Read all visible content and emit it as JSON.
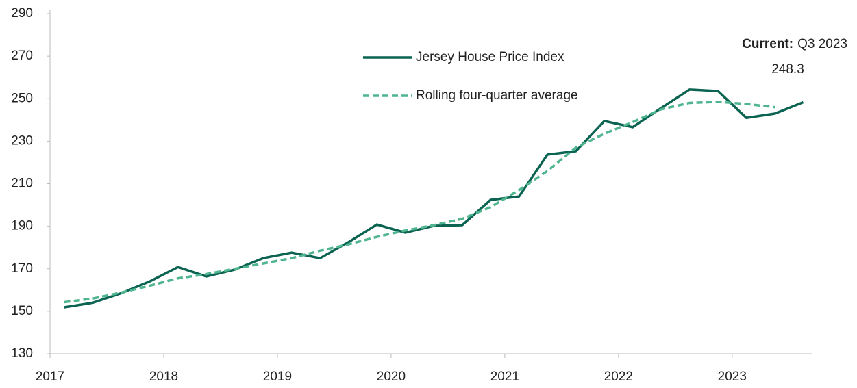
{
  "chart_data": {
    "type": "line",
    "x": [
      2017.125,
      2017.375,
      2017.625,
      2017.875,
      2018.125,
      2018.375,
      2018.625,
      2018.875,
      2019.125,
      2019.375,
      2019.625,
      2019.875,
      2020.125,
      2020.375,
      2020.625,
      2020.875,
      2021.125,
      2021.375,
      2021.625,
      2021.875,
      2022.125,
      2022.375,
      2022.625,
      2022.875,
      2023.125,
      2023.375,
      2023.625
    ],
    "series": [
      {
        "name": "Jersey House Price Index",
        "color": "#0b6352",
        "dashed": false,
        "values": [
          151.9,
          154,
          158.5,
          164,
          170.8,
          166.4,
          169.6,
          175,
          177.6,
          175,
          182.5,
          190.8,
          187,
          190.2,
          190.5,
          202.4,
          204,
          223.7,
          225.3,
          239.5,
          236.6,
          245.6,
          254.3,
          253.6,
          241,
          243,
          248.3
        ]
      },
      {
        "name": "Rolling four-quarter average",
        "color": "#4fb58f",
        "dashed": true,
        "values": [
          154.3,
          156,
          158.8,
          162,
          165.5,
          167.5,
          170,
          172.5,
          175,
          178.5,
          181.5,
          185,
          188,
          190.5,
          193.5,
          199,
          207,
          216,
          227,
          233.5,
          239,
          245,
          248,
          248.5,
          247.5,
          246,
          null
        ]
      }
    ],
    "annotation": {
      "label": "Current:",
      "period": "Q3 2023"
    },
    "xlim": [
      2017,
      2023.7
    ],
    "xticks": [
      2017,
      2018,
      2019,
      2020,
      2021,
      2022,
      2023
    ],
    "ylim": [
      130,
      290
    ],
    "yticks": [
      130,
      150,
      170,
      190,
      210,
      230,
      250,
      270,
      290
    ],
    "grid": false
  }
}
